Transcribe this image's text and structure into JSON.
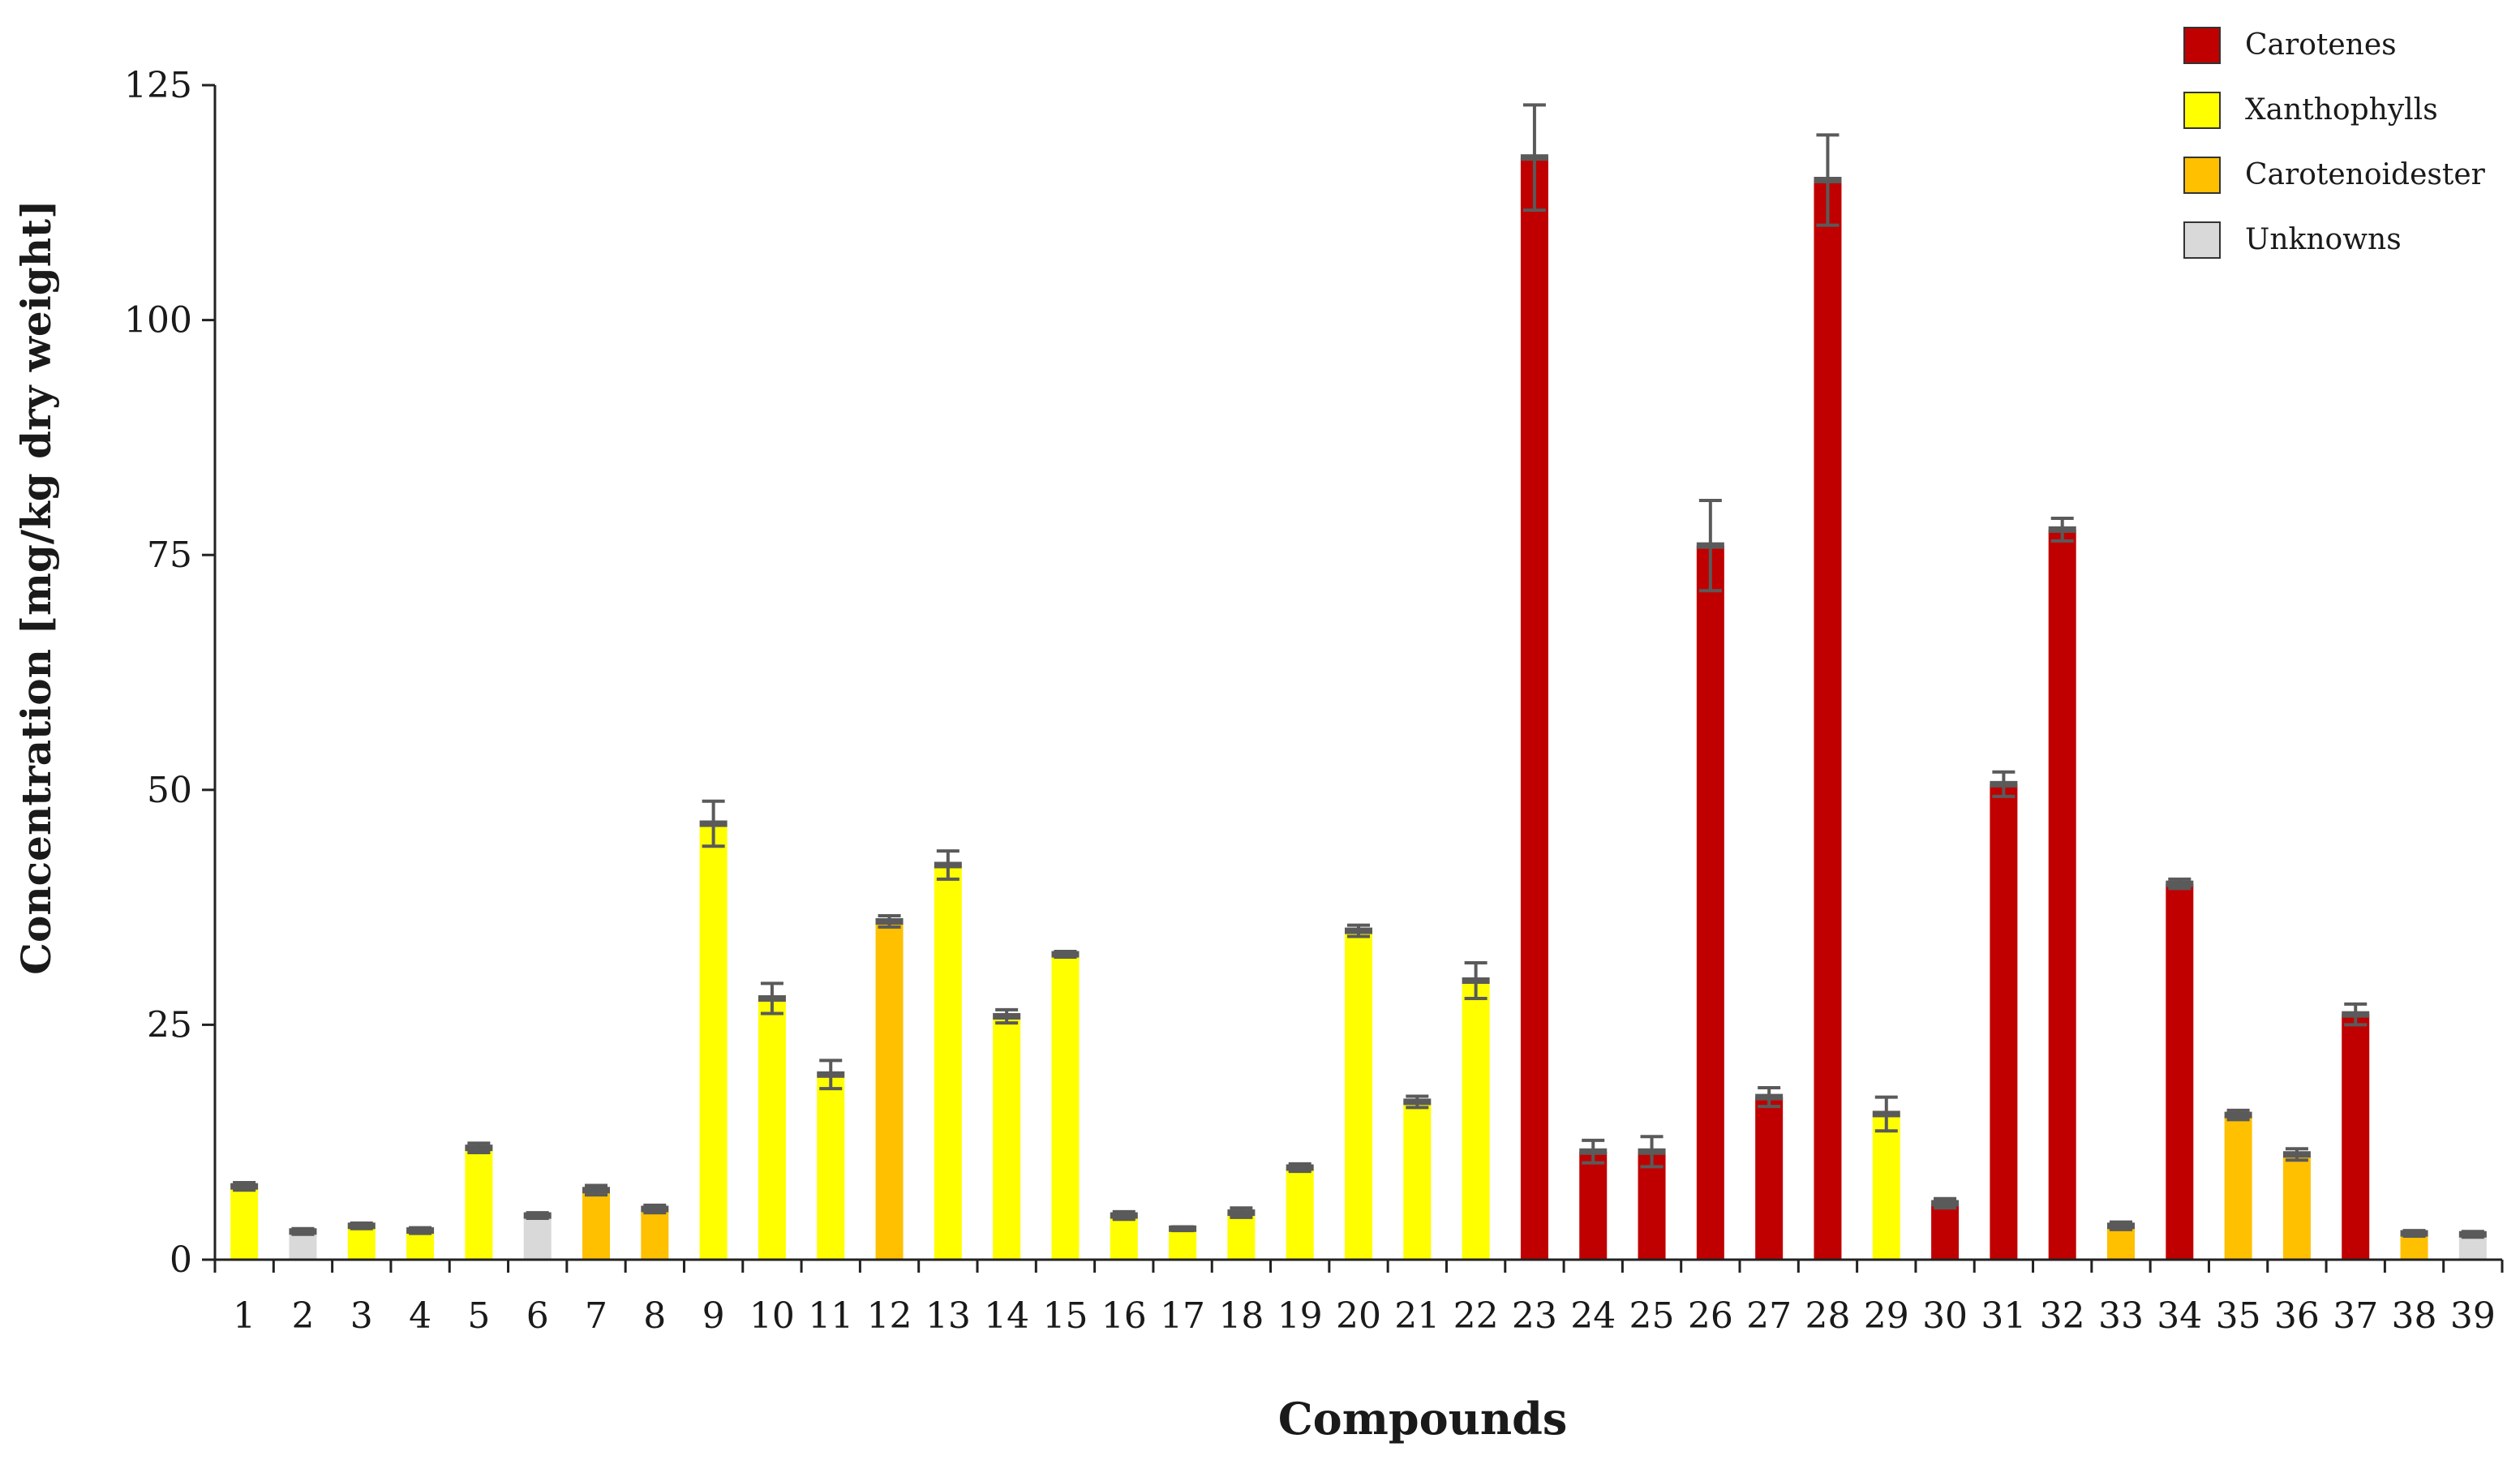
{
  "chart_data": {
    "type": "bar",
    "title": "",
    "xlabel": "Compounds",
    "ylabel": "Concentration [mg/kg  dry weight]",
    "ylim": [
      0,
      125
    ],
    "yticks": [
      "0",
      "25",
      "50",
      "75",
      "100",
      "125"
    ],
    "grid": false,
    "legend_position": "top-right",
    "legend": [
      {
        "name": "Carotenes",
        "key": "carotene",
        "color": "#C00000"
      },
      {
        "name": "Xanthophylls",
        "key": "xanthophyll",
        "color": "#FFFF00"
      },
      {
        "name": "Carotenoidester",
        "key": "ester",
        "color": "#FFC000"
      },
      {
        "name": "Unknowns",
        "key": "unknown",
        "color": "#D9D9D9"
      }
    ],
    "categories": [
      "1",
      "2",
      "3",
      "4",
      "5",
      "6",
      "7",
      "8",
      "9",
      "10",
      "11",
      "12",
      "13",
      "14",
      "15",
      "16",
      "17",
      "18",
      "19",
      "20",
      "21",
      "22",
      "23",
      "24",
      "25",
      "26",
      "27",
      "28",
      "29",
      "30",
      "31",
      "32",
      "33",
      "34",
      "35",
      "36",
      "37",
      "38",
      "39"
    ],
    "classes": [
      "xanthophyll",
      "unknown",
      "xanthophyll",
      "xanthophyll",
      "xanthophyll",
      "unknown",
      "ester",
      "ester",
      "xanthophyll",
      "xanthophyll",
      "xanthophyll",
      "ester",
      "xanthophyll",
      "xanthophyll",
      "xanthophyll",
      "xanthophyll",
      "xanthophyll",
      "xanthophyll",
      "xanthophyll",
      "xanthophyll",
      "xanthophyll",
      "xanthophyll",
      "carotene",
      "carotene",
      "carotene",
      "carotene",
      "carotene",
      "carotene",
      "xanthophyll",
      "carotene",
      "carotene",
      "carotene",
      "ester",
      "carotene",
      "ester",
      "ester",
      "carotene",
      "ester",
      "unknown"
    ],
    "values": [
      7.8,
      3.0,
      3.6,
      3.1,
      11.9,
      4.7,
      7.4,
      5.4,
      46.4,
      27.8,
      19.7,
      36.0,
      42.0,
      25.9,
      32.5,
      4.7,
      3.3,
      5.0,
      9.8,
      35.0,
      16.8,
      29.7,
      117.3,
      11.5,
      11.5,
      76.0,
      17.3,
      114.9,
      15.5,
      6.0,
      50.6,
      77.7,
      3.6,
      40.0,
      15.4,
      11.2,
      26.1,
      2.8,
      2.7
    ],
    "errors": [
      0.4,
      0.3,
      0.3,
      0.3,
      0.5,
      0.3,
      0.5,
      0.4,
      2.4,
      1.6,
      1.5,
      0.6,
      1.5,
      0.7,
      0.3,
      0.4,
      0.2,
      0.5,
      0.4,
      0.6,
      0.6,
      1.9,
      5.6,
      1.2,
      1.6,
      4.8,
      1.0,
      4.8,
      1.8,
      0.5,
      1.3,
      1.2,
      0.4,
      0.5,
      0.5,
      0.6,
      1.1,
      0.3,
      0.3
    ]
  }
}
